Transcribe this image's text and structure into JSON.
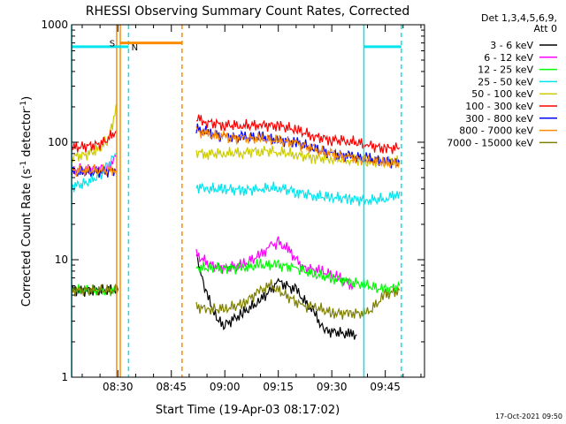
{
  "chart_data": {
    "type": "line",
    "title": "RHESSI Observing Summary Count Rates, Corrected",
    "xlabel": "Start Time (19-Apr-03 08:17:02)",
    "ylabel": "Corrected Count Rate (s",
    "ylabel_sup1": "-1",
    "ylabel_mid": " detector",
    "ylabel_sup2": "-1",
    "ylabel_end": ")",
    "yscale": "log",
    "ylim": [
      1,
      1000
    ],
    "xlim": [
      "08:17:02",
      "09:56:00"
    ],
    "xticks": [
      "08:30",
      "08:45",
      "09:00",
      "09:15",
      "09:30",
      "09:45"
    ],
    "yticks": [
      "1",
      "10",
      "100",
      "1000"
    ],
    "legend_header": [
      "Det 1,3,4,5,6,9,",
      "Att 0"
    ],
    "legend_position": "right",
    "footer_date": "17-Oct-2021 09:50",
    "markers": {
      "saa_label": "S",
      "night_label": "N",
      "saa_color": "#ff8c00",
      "night_color": "#00e5ee"
    },
    "series": [
      {
        "name": "3 - 6 keV",
        "color": "#000000",
        "segments": [
          [
            [
              "08:17:02",
              5.5
            ],
            [
              "08:30:00",
              5.5
            ]
          ],
          [
            [
              "08:52:00",
              11
            ],
            [
              "08:53:00",
              8
            ],
            [
              "08:55:00",
              5
            ],
            [
              "08:58:00",
              3
            ],
            [
              "09:00:00",
              2.8
            ],
            [
              "09:05:00",
              3.5
            ],
            [
              "09:10:00",
              4.5
            ],
            [
              "09:15:00",
              6.5
            ],
            [
              "09:20:00",
              5.5
            ],
            [
              "09:25:00",
              3.5
            ],
            [
              "09:28:00",
              2.5
            ],
            [
              "09:32:00",
              2.4
            ],
            [
              "09:35:00",
              2.3
            ],
            [
              "09:37:00",
              2.3
            ]
          ]
        ]
      },
      {
        "name": "6 - 12 keV",
        "color": "#ff00ff",
        "segments": [
          [
            [
              "08:17:02",
              58
            ],
            [
              "08:27:00",
              60
            ],
            [
              "08:29:30",
              75
            ]
          ],
          [
            [
              "08:52:00",
              11
            ],
            [
              "08:56:00",
              9
            ],
            [
              "09:00:00",
              8.5
            ],
            [
              "09:05:00",
              9
            ],
            [
              "09:10:00",
              11
            ],
            [
              "09:13:00",
              13
            ],
            [
              "09:15:00",
              14
            ],
            [
              "09:18:00",
              12
            ],
            [
              "09:22:00",
              8.5
            ],
            [
              "09:27:00",
              8
            ],
            [
              "09:32:00",
              7
            ],
            [
              "09:36:00",
              6
            ]
          ]
        ]
      },
      {
        "name": "12 - 25 keV",
        "color": "#00ff00",
        "segments": [
          [
            [
              "08:17:02",
              5.5
            ],
            [
              "08:30:00",
              5.5
            ]
          ],
          [
            [
              "08:52:00",
              8.5
            ],
            [
              "08:56:00",
              8.5
            ],
            [
              "09:00:00",
              8.5
            ],
            [
              "09:05:00",
              8.5
            ],
            [
              "09:10:00",
              9
            ],
            [
              "09:15:00",
              9
            ],
            [
              "09:20:00",
              8.5
            ],
            [
              "09:25:00",
              7.5
            ],
            [
              "09:30:00",
              7
            ],
            [
              "09:35:00",
              6.5
            ],
            [
              "09:40:00",
              6
            ],
            [
              "09:45:00",
              5.5
            ],
            [
              "09:49:00",
              6
            ]
          ]
        ]
      },
      {
        "name": "25 - 50 keV",
        "color": "#00e5ee",
        "segments": [
          [
            [
              "08:17:02",
              42
            ],
            [
              "08:21:00",
              45
            ],
            [
              "08:25:00",
              52
            ],
            [
              "08:27:00",
              62
            ],
            [
              "08:29:30",
              80
            ]
          ],
          [
            [
              "08:52:00",
              42
            ],
            [
              "08:55:00",
              40
            ],
            [
              "09:00:00",
              40
            ],
            [
              "09:05:00",
              39
            ],
            [
              "09:10:00",
              40
            ],
            [
              "09:15:00",
              41
            ],
            [
              "09:20:00",
              38
            ],
            [
              "09:25:00",
              35
            ],
            [
              "09:30:00",
              34
            ],
            [
              "09:35:00",
              33
            ],
            [
              "09:40:00",
              32
            ],
            [
              "09:45:00",
              33
            ],
            [
              "09:48:00",
              36
            ],
            [
              "09:49:00",
              38
            ]
          ]
        ]
      },
      {
        "name": "50 - 100 keV",
        "color": "#cccc00",
        "segments": [
          [
            [
              "08:17:02",
              75
            ],
            [
              "08:21:00",
              78
            ],
            [
              "08:25:00",
              88
            ],
            [
              "08:27:00",
              105
            ],
            [
              "08:28:30",
              140
            ],
            [
              "08:29:30",
              210
            ]
          ],
          [
            [
              "08:52:00",
              82
            ],
            [
              "08:55:00",
              80
            ],
            [
              "09:00:00",
              80
            ],
            [
              "09:05:00",
              82
            ],
            [
              "09:10:00",
              85
            ],
            [
              "09:15:00",
              83
            ],
            [
              "09:20:00",
              78
            ],
            [
              "09:25:00",
              74
            ],
            [
              "09:30:00",
              72
            ],
            [
              "09:35:00",
              71
            ],
            [
              "09:40:00",
              70
            ],
            [
              "09:45:00",
              68
            ],
            [
              "09:49:00",
              68
            ]
          ]
        ]
      },
      {
        "name": "100 - 300 keV",
        "color": "#ff0000",
        "segments": [
          [
            [
              "08:17:02",
              90
            ],
            [
              "08:21:00",
              92
            ],
            [
              "08:25:00",
              96
            ],
            [
              "08:27:00",
              105
            ],
            [
              "08:29:30",
              125
            ]
          ],
          [
            [
              "08:52:00",
              160
            ],
            [
              "08:55:00",
              148
            ],
            [
              "09:00:00",
              140
            ],
            [
              "09:05:00",
              138
            ],
            [
              "09:10:00",
              140
            ],
            [
              "09:15:00",
              138
            ],
            [
              "09:20:00",
              128
            ],
            [
              "09:25:00",
              112
            ],
            [
              "09:30:00",
              105
            ],
            [
              "09:35:00",
              102
            ],
            [
              "09:40:00",
              95
            ],
            [
              "09:45:00",
              88
            ],
            [
              "09:49:00",
              90
            ]
          ]
        ]
      },
      {
        "name": "300 - 800 keV",
        "color": "#0000ff",
        "segments": [
          [
            [
              "08:17:02",
              55
            ],
            [
              "08:29:30",
              57
            ]
          ],
          [
            [
              "08:52:00",
              130
            ],
            [
              "08:55:00",
              120
            ],
            [
              "09:00:00",
              112
            ],
            [
              "09:05:00",
              110
            ],
            [
              "09:10:00",
              110
            ],
            [
              "09:15:00",
              105
            ],
            [
              "09:20:00",
              100
            ],
            [
              "09:25:00",
              88
            ],
            [
              "09:30:00",
              80
            ],
            [
              "09:35:00",
              76
            ],
            [
              "09:40:00",
              72
            ],
            [
              "09:45:00",
              68
            ],
            [
              "09:49:00",
              68
            ]
          ]
        ]
      },
      {
        "name": "800 - 7000 keV",
        "color": "#ff8c00",
        "segments": [
          [
            [
              "08:17:02",
              57
            ],
            [
              "08:29:30",
              58
            ]
          ],
          [
            [
              "08:52:00",
              125
            ],
            [
              "08:55:00",
              116
            ],
            [
              "09:00:00",
              110
            ],
            [
              "09:05:00",
              108
            ],
            [
              "09:10:00",
              107
            ],
            [
              "09:15:00",
              103
            ],
            [
              "09:20:00",
              98
            ],
            [
              "09:25:00",
              86
            ],
            [
              "09:30:00",
              78
            ],
            [
              "09:35:00",
              74
            ],
            [
              "09:40:00",
              70
            ],
            [
              "09:45:00",
              66
            ],
            [
              "09:49:00",
              67
            ]
          ]
        ]
      },
      {
        "name": "7000 - 15000 keV",
        "color": "#808000",
        "segments": [
          [
            [
              "08:17:02",
              5.5
            ],
            [
              "08:30:00",
              5.5
            ]
          ],
          [
            [
              "08:52:00",
              4
            ],
            [
              "08:55:00",
              3.8
            ],
            [
              "09:00:00",
              3.8
            ],
            [
              "09:05:00",
              4.2
            ],
            [
              "09:10:00",
              5.5
            ],
            [
              "09:13:00",
              6
            ],
            [
              "09:17:00",
              5
            ],
            [
              "09:22:00",
              4
            ],
            [
              "09:25:00",
              4
            ],
            [
              "09:30:00",
              3.5
            ],
            [
              "09:35:00",
              3.5
            ],
            [
              "09:40:00",
              3.5
            ],
            [
              "09:45:00",
              5
            ],
            [
              "09:49:00",
              5.5
            ]
          ]
        ]
      }
    ],
    "bars": [
      {
        "label_key": "saa_label",
        "color": "#ff8c00",
        "start": "08:30:40",
        "end": "08:48:00",
        "level": 700
      },
      {
        "label_key": "night_label",
        "color": "#00e5ee",
        "start": "08:17:02",
        "end": "08:33:00",
        "level": 650
      },
      {
        "label_key": "night_label",
        "color": "#00e5ee",
        "start": "09:39:00",
        "end": "09:49:30",
        "level": 650
      }
    ],
    "vlines": [
      {
        "time": "08:17:02",
        "color": "#00e5ee",
        "dashed": false
      },
      {
        "time": "08:29:40",
        "color": "#ff8c00",
        "dashed": false
      },
      {
        "time": "08:30:40",
        "color": "#ff8c00",
        "dashed": false
      },
      {
        "time": "08:33:00",
        "color": "#00e5ee",
        "dashed": true
      },
      {
        "time": "08:48:00",
        "color": "#ff8c00",
        "dashed": true
      },
      {
        "time": "09:39:00",
        "color": "#00e5ee",
        "dashed": false
      },
      {
        "time": "09:49:30",
        "color": "#00e5ee",
        "dashed": true
      }
    ]
  }
}
